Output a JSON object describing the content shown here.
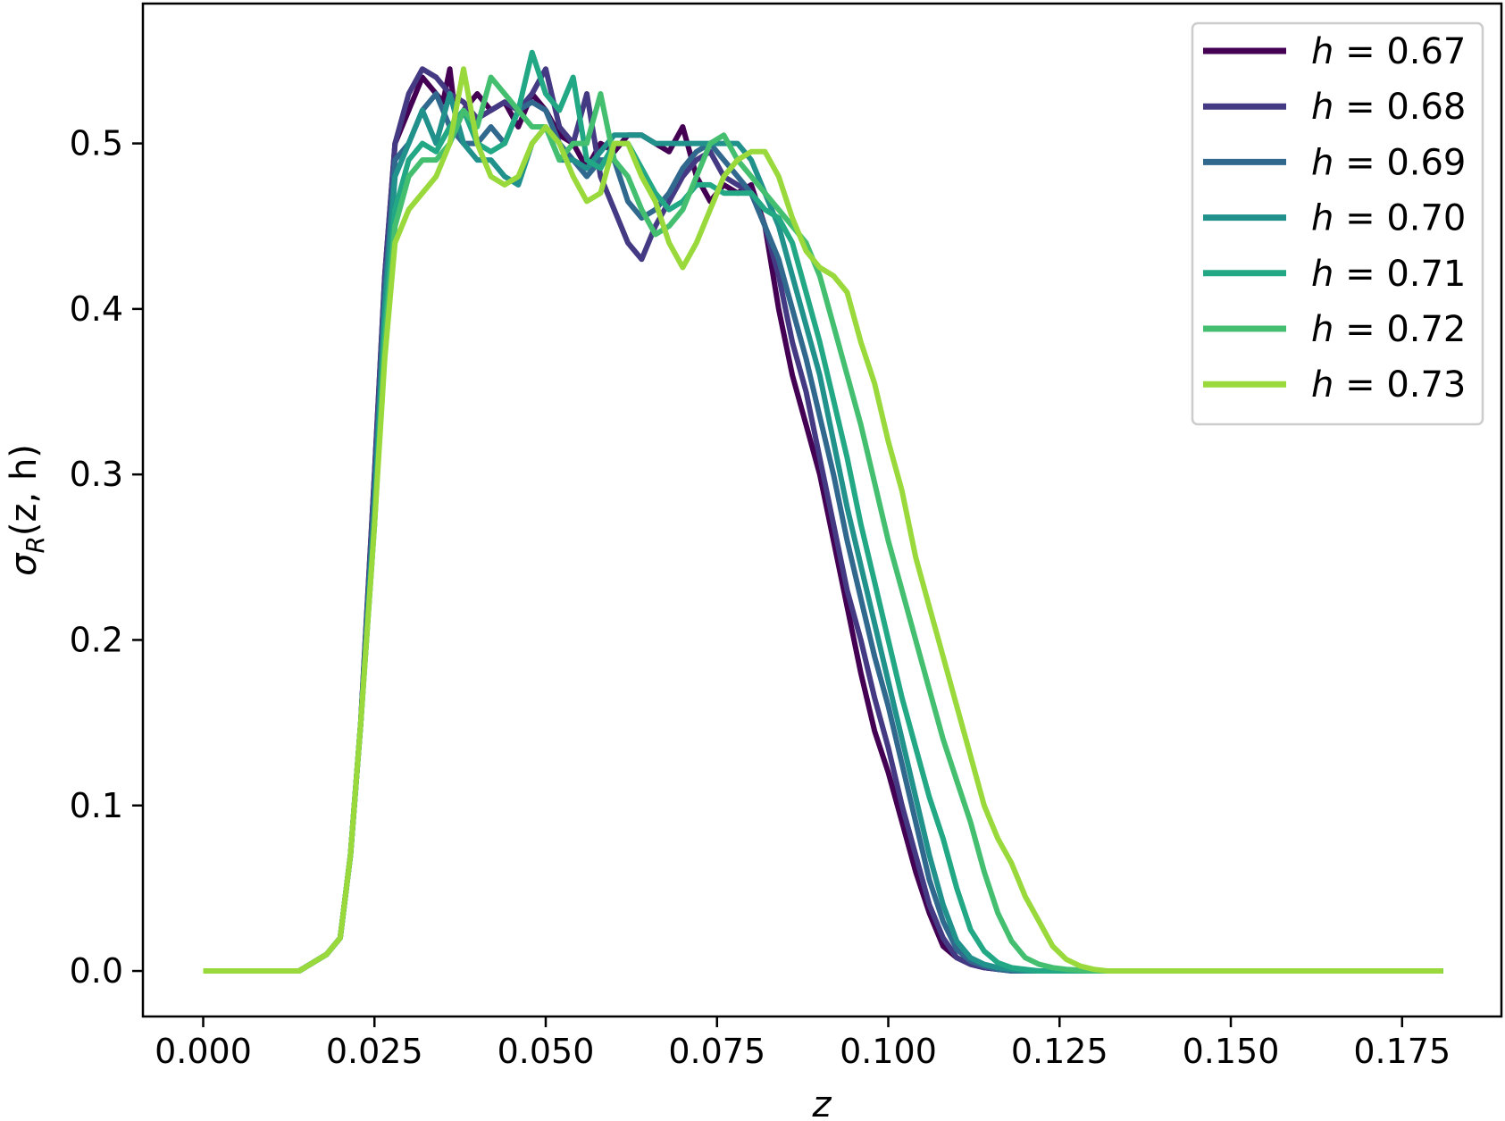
{
  "chart_data": {
    "type": "line",
    "title": "",
    "xlabel": "z",
    "ylabel_parts": {
      "main": "σ",
      "sub": "R",
      "args": "(z, h)"
    },
    "xlim": [
      -0.0088,
      0.1895
    ],
    "ylim": [
      -0.0275,
      0.5845
    ],
    "xticks": [
      0.0,
      0.025,
      0.05,
      0.075,
      0.1,
      0.125,
      0.15,
      0.175
    ],
    "xtick_labels": [
      "0.000",
      "0.025",
      "0.050",
      "0.075",
      "0.100",
      "0.125",
      "0.150",
      "0.175"
    ],
    "yticks": [
      0.0,
      0.1,
      0.2,
      0.3,
      0.4,
      0.5
    ],
    "ytick_labels": [
      "0.0",
      "0.1",
      "0.2",
      "0.3",
      "0.4",
      "0.5"
    ],
    "grid": false,
    "legend_position": "top-right",
    "series": [
      {
        "name": "h = 0.67",
        "label_var": "h",
        "label_val": "0.67",
        "color": "#440154",
        "x": [
          0.0,
          0.014,
          0.016,
          0.018,
          0.02,
          0.0215,
          0.023,
          0.025,
          0.0265,
          0.028,
          0.03,
          0.032,
          0.034,
          0.035,
          0.036,
          0.037,
          0.038,
          0.04,
          0.042,
          0.044,
          0.046,
          0.048,
          0.05,
          0.052,
          0.054,
          0.056,
          0.058,
          0.06,
          0.062,
          0.064,
          0.066,
          0.068,
          0.07,
          0.072,
          0.074,
          0.076,
          0.078,
          0.08,
          0.082,
          0.084,
          0.086,
          0.088,
          0.09,
          0.092,
          0.094,
          0.096,
          0.098,
          0.1,
          0.102,
          0.104,
          0.106,
          0.108,
          0.11,
          0.112,
          0.114,
          0.116,
          0.12,
          0.181
        ],
        "y": [
          0.0,
          0.0,
          0.005,
          0.01,
          0.02,
          0.07,
          0.15,
          0.3,
          0.42,
          0.5,
          0.52,
          0.54,
          0.53,
          0.525,
          0.545,
          0.51,
          0.52,
          0.53,
          0.52,
          0.525,
          0.51,
          0.53,
          0.52,
          0.505,
          0.5,
          0.485,
          0.5,
          0.495,
          0.505,
          0.505,
          0.5,
          0.495,
          0.51,
          0.48,
          0.465,
          0.475,
          0.47,
          0.475,
          0.45,
          0.4,
          0.36,
          0.33,
          0.3,
          0.26,
          0.22,
          0.18,
          0.145,
          0.12,
          0.09,
          0.06,
          0.035,
          0.015,
          0.008,
          0.004,
          0.002,
          0.001,
          0.0,
          0.0
        ]
      },
      {
        "name": "h = 0.68",
        "label_var": "h",
        "label_val": "0.68",
        "color": "#443983",
        "x": [
          0.0,
          0.014,
          0.016,
          0.018,
          0.02,
          0.0215,
          0.023,
          0.025,
          0.0265,
          0.028,
          0.03,
          0.032,
          0.034,
          0.036,
          0.038,
          0.04,
          0.042,
          0.044,
          0.046,
          0.048,
          0.05,
          0.052,
          0.054,
          0.056,
          0.058,
          0.06,
          0.062,
          0.064,
          0.066,
          0.068,
          0.07,
          0.072,
          0.074,
          0.076,
          0.078,
          0.08,
          0.082,
          0.084,
          0.086,
          0.088,
          0.09,
          0.092,
          0.094,
          0.096,
          0.098,
          0.1,
          0.102,
          0.104,
          0.106,
          0.108,
          0.11,
          0.112,
          0.114,
          0.116,
          0.118,
          0.122,
          0.181
        ],
        "y": [
          0.0,
          0.0,
          0.005,
          0.01,
          0.02,
          0.07,
          0.15,
          0.3,
          0.42,
          0.5,
          0.53,
          0.545,
          0.54,
          0.53,
          0.525,
          0.515,
          0.52,
          0.525,
          0.52,
          0.53,
          0.545,
          0.51,
          0.5,
          0.53,
          0.48,
          0.46,
          0.44,
          0.43,
          0.45,
          0.465,
          0.48,
          0.49,
          0.495,
          0.48,
          0.475,
          0.47,
          0.45,
          0.42,
          0.38,
          0.35,
          0.31,
          0.27,
          0.23,
          0.2,
          0.165,
          0.135,
          0.1,
          0.07,
          0.04,
          0.02,
          0.008,
          0.004,
          0.002,
          0.001,
          0.0,
          0.0,
          0.0
        ]
      },
      {
        "name": "h = 0.69",
        "label_var": "h",
        "label_val": "0.69",
        "color": "#31688e",
        "x": [
          0.0,
          0.014,
          0.016,
          0.018,
          0.02,
          0.0215,
          0.023,
          0.025,
          0.0265,
          0.028,
          0.03,
          0.032,
          0.034,
          0.036,
          0.038,
          0.04,
          0.042,
          0.044,
          0.046,
          0.048,
          0.05,
          0.052,
          0.054,
          0.056,
          0.058,
          0.06,
          0.062,
          0.064,
          0.066,
          0.068,
          0.07,
          0.072,
          0.074,
          0.076,
          0.078,
          0.08,
          0.082,
          0.084,
          0.086,
          0.088,
          0.09,
          0.092,
          0.094,
          0.096,
          0.098,
          0.1,
          0.102,
          0.104,
          0.106,
          0.108,
          0.11,
          0.112,
          0.114,
          0.116,
          0.118,
          0.12,
          0.124,
          0.181
        ],
        "y": [
          0.0,
          0.0,
          0.005,
          0.01,
          0.02,
          0.07,
          0.15,
          0.29,
          0.41,
          0.49,
          0.5,
          0.52,
          0.53,
          0.51,
          0.5,
          0.5,
          0.51,
          0.5,
          0.52,
          0.525,
          0.52,
          0.5,
          0.49,
          0.48,
          0.49,
          0.49,
          0.465,
          0.455,
          0.46,
          0.47,
          0.485,
          0.495,
          0.5,
          0.49,
          0.48,
          0.47,
          0.45,
          0.43,
          0.4,
          0.37,
          0.335,
          0.3,
          0.26,
          0.225,
          0.19,
          0.16,
          0.125,
          0.09,
          0.055,
          0.03,
          0.013,
          0.006,
          0.003,
          0.001,
          0.0,
          0.0,
          0.0,
          0.0
        ]
      },
      {
        "name": "h = 0.70",
        "label_var": "h",
        "label_val": "0.70",
        "color": "#21918c",
        "x": [
          0.0,
          0.014,
          0.016,
          0.018,
          0.02,
          0.0215,
          0.023,
          0.025,
          0.0265,
          0.028,
          0.03,
          0.032,
          0.034,
          0.036,
          0.038,
          0.04,
          0.042,
          0.044,
          0.046,
          0.048,
          0.05,
          0.052,
          0.054,
          0.056,
          0.058,
          0.06,
          0.062,
          0.064,
          0.066,
          0.068,
          0.07,
          0.072,
          0.074,
          0.076,
          0.078,
          0.08,
          0.082,
          0.084,
          0.086,
          0.088,
          0.09,
          0.092,
          0.094,
          0.096,
          0.098,
          0.1,
          0.102,
          0.104,
          0.106,
          0.108,
          0.11,
          0.112,
          0.114,
          0.116,
          0.118,
          0.12,
          0.122,
          0.126,
          0.181
        ],
        "y": [
          0.0,
          0.0,
          0.005,
          0.01,
          0.02,
          0.07,
          0.15,
          0.28,
          0.4,
          0.48,
          0.5,
          0.52,
          0.5,
          0.53,
          0.5,
          0.49,
          0.49,
          0.48,
          0.475,
          0.5,
          0.51,
          0.49,
          0.49,
          0.485,
          0.495,
          0.505,
          0.505,
          0.505,
          0.5,
          0.5,
          0.5,
          0.5,
          0.5,
          0.5,
          0.5,
          0.49,
          0.47,
          0.45,
          0.42,
          0.39,
          0.36,
          0.32,
          0.28,
          0.245,
          0.21,
          0.175,
          0.14,
          0.105,
          0.07,
          0.04,
          0.018,
          0.008,
          0.004,
          0.002,
          0.001,
          0.0,
          0.0,
          0.0,
          0.0
        ]
      },
      {
        "name": "h = 0.71",
        "label_var": "h",
        "label_val": "0.71",
        "color": "#22a884",
        "x": [
          0.0,
          0.014,
          0.016,
          0.018,
          0.02,
          0.0215,
          0.023,
          0.025,
          0.0265,
          0.028,
          0.03,
          0.032,
          0.034,
          0.036,
          0.038,
          0.04,
          0.042,
          0.044,
          0.046,
          0.048,
          0.05,
          0.052,
          0.054,
          0.056,
          0.058,
          0.06,
          0.062,
          0.064,
          0.066,
          0.068,
          0.07,
          0.072,
          0.074,
          0.076,
          0.078,
          0.08,
          0.082,
          0.084,
          0.086,
          0.088,
          0.09,
          0.092,
          0.094,
          0.096,
          0.098,
          0.1,
          0.102,
          0.104,
          0.106,
          0.108,
          0.11,
          0.112,
          0.114,
          0.116,
          0.118,
          0.12,
          0.122,
          0.124,
          0.128,
          0.181
        ],
        "y": [
          0.0,
          0.0,
          0.005,
          0.01,
          0.02,
          0.07,
          0.15,
          0.27,
          0.39,
          0.46,
          0.49,
          0.5,
          0.495,
          0.51,
          0.52,
          0.5,
          0.495,
          0.5,
          0.52,
          0.555,
          0.53,
          0.52,
          0.54,
          0.49,
          0.485,
          0.5,
          0.5,
          0.485,
          0.47,
          0.46,
          0.465,
          0.475,
          0.475,
          0.47,
          0.47,
          0.47,
          0.46,
          0.455,
          0.44,
          0.41,
          0.38,
          0.345,
          0.31,
          0.27,
          0.235,
          0.2,
          0.165,
          0.135,
          0.105,
          0.08,
          0.05,
          0.025,
          0.012,
          0.005,
          0.002,
          0.001,
          0.0,
          0.0,
          0.0,
          0.0
        ]
      },
      {
        "name": "h = 0.72",
        "label_var": "h",
        "label_val": "0.72",
        "color": "#44bf70",
        "x": [
          0.0,
          0.014,
          0.016,
          0.018,
          0.02,
          0.0215,
          0.023,
          0.025,
          0.0265,
          0.028,
          0.03,
          0.032,
          0.034,
          0.036,
          0.038,
          0.04,
          0.042,
          0.044,
          0.046,
          0.048,
          0.05,
          0.052,
          0.054,
          0.056,
          0.058,
          0.06,
          0.062,
          0.064,
          0.066,
          0.068,
          0.07,
          0.072,
          0.074,
          0.076,
          0.078,
          0.08,
          0.082,
          0.084,
          0.086,
          0.088,
          0.09,
          0.092,
          0.094,
          0.096,
          0.098,
          0.1,
          0.102,
          0.104,
          0.106,
          0.108,
          0.11,
          0.112,
          0.114,
          0.116,
          0.118,
          0.12,
          0.122,
          0.124,
          0.126,
          0.13,
          0.181
        ],
        "y": [
          0.0,
          0.0,
          0.005,
          0.01,
          0.02,
          0.07,
          0.15,
          0.27,
          0.38,
          0.45,
          0.48,
          0.49,
          0.49,
          0.5,
          0.52,
          0.51,
          0.54,
          0.53,
          0.52,
          0.51,
          0.51,
          0.49,
          0.5,
          0.5,
          0.53,
          0.49,
          0.48,
          0.46,
          0.445,
          0.45,
          0.46,
          0.48,
          0.5,
          0.505,
          0.49,
          0.48,
          0.47,
          0.46,
          0.45,
          0.44,
          0.42,
          0.39,
          0.36,
          0.33,
          0.295,
          0.26,
          0.23,
          0.2,
          0.17,
          0.14,
          0.115,
          0.09,
          0.06,
          0.035,
          0.018,
          0.008,
          0.004,
          0.002,
          0.001,
          0.0,
          0.0
        ]
      },
      {
        "name": "h = 0.73",
        "label_var": "h",
        "label_val": "0.73",
        "color": "#9ad93c",
        "x": [
          0.0,
          0.014,
          0.016,
          0.018,
          0.02,
          0.0215,
          0.023,
          0.025,
          0.0265,
          0.028,
          0.03,
          0.032,
          0.034,
          0.036,
          0.038,
          0.04,
          0.042,
          0.044,
          0.046,
          0.048,
          0.05,
          0.052,
          0.054,
          0.056,
          0.058,
          0.06,
          0.062,
          0.064,
          0.066,
          0.068,
          0.07,
          0.072,
          0.074,
          0.076,
          0.078,
          0.08,
          0.082,
          0.084,
          0.086,
          0.088,
          0.09,
          0.092,
          0.094,
          0.096,
          0.098,
          0.1,
          0.102,
          0.104,
          0.106,
          0.108,
          0.11,
          0.112,
          0.114,
          0.116,
          0.118,
          0.12,
          0.122,
          0.124,
          0.126,
          0.128,
          0.13,
          0.132,
          0.136,
          0.181
        ],
        "y": [
          0.0,
          0.0,
          0.005,
          0.01,
          0.02,
          0.07,
          0.15,
          0.27,
          0.37,
          0.44,
          0.46,
          0.47,
          0.48,
          0.5,
          0.545,
          0.5,
          0.48,
          0.475,
          0.48,
          0.5,
          0.51,
          0.5,
          0.48,
          0.465,
          0.47,
          0.5,
          0.5,
          0.48,
          0.465,
          0.44,
          0.425,
          0.44,
          0.46,
          0.48,
          0.49,
          0.495,
          0.495,
          0.48,
          0.455,
          0.435,
          0.425,
          0.42,
          0.41,
          0.38,
          0.355,
          0.32,
          0.29,
          0.25,
          0.22,
          0.19,
          0.16,
          0.13,
          0.1,
          0.08,
          0.065,
          0.045,
          0.03,
          0.015,
          0.007,
          0.003,
          0.001,
          0.0,
          0.0,
          0.0
        ]
      }
    ]
  }
}
